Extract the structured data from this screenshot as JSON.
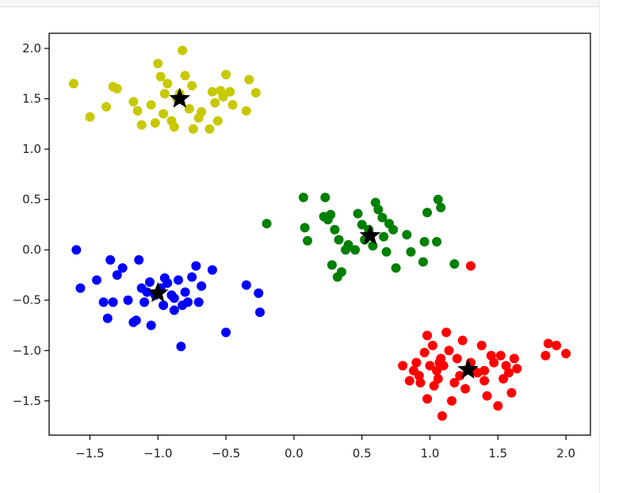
{
  "chart_data": {
    "type": "scatter",
    "title": "",
    "xlabel": "",
    "ylabel": "",
    "xlim": [
      -1.8,
      2.18
    ],
    "ylim": [
      -1.84,
      2.15
    ],
    "xticks": [
      "−1.5",
      "−1.0",
      "−0.5",
      "0.0",
      "0.5",
      "1.0",
      "1.5",
      "2.0"
    ],
    "xtick_values": [
      -1.5,
      -1.0,
      -0.5,
      0.0,
      0.5,
      1.0,
      1.5,
      2.0
    ],
    "yticks": [
      "2.0",
      "1.5",
      "1.0",
      "0.5",
      "0.0",
      "−0.5",
      "−1.0",
      "−1.5"
    ],
    "ytick_values": [
      2.0,
      1.5,
      1.0,
      0.5,
      0.0,
      -0.5,
      -1.0,
      -1.5
    ],
    "grid": false,
    "legend": false,
    "series": [
      {
        "color": "#0000ff",
        "points": [
          [
            -1.6,
            0.0
          ],
          [
            -1.57,
            -0.38
          ],
          [
            -1.45,
            -0.3
          ],
          [
            -1.4,
            -0.52
          ],
          [
            -1.35,
            -0.1
          ],
          [
            -1.33,
            -0.52
          ],
          [
            -1.3,
            -0.25
          ],
          [
            -1.26,
            -0.18
          ],
          [
            -1.22,
            -0.5
          ],
          [
            -1.18,
            -0.72
          ],
          [
            -1.14,
            -0.1
          ],
          [
            -1.12,
            -0.38
          ],
          [
            -1.1,
            -0.52
          ],
          [
            -1.06,
            -0.32
          ],
          [
            -1.05,
            -0.75
          ],
          [
            -1.02,
            -0.45
          ],
          [
            -0.98,
            -0.38
          ],
          [
            -0.96,
            -0.55
          ],
          [
            -0.93,
            -0.33
          ],
          [
            -0.9,
            -0.45
          ],
          [
            -0.88,
            -0.48
          ],
          [
            -0.85,
            -0.3
          ],
          [
            -0.83,
            -0.96
          ],
          [
            -0.82,
            -0.55
          ],
          [
            -0.8,
            -0.42
          ],
          [
            -0.78,
            -0.52
          ],
          [
            -0.75,
            -0.27
          ],
          [
            -0.72,
            -0.16
          ],
          [
            -0.7,
            -0.52
          ],
          [
            -0.68,
            -0.36
          ],
          [
            -0.6,
            -0.2
          ],
          [
            -0.5,
            -0.82
          ],
          [
            -0.35,
            -0.35
          ],
          [
            -0.26,
            -0.43
          ],
          [
            -0.25,
            -0.62
          ],
          [
            -1.37,
            -0.68
          ],
          [
            -1.16,
            -0.7
          ],
          [
            -1.08,
            -0.42
          ],
          [
            -0.95,
            -0.28
          ],
          [
            -0.88,
            -0.6
          ]
        ],
        "centroid": [
          -1.0,
          -0.43
        ]
      },
      {
        "color": "#c8c800",
        "points": [
          [
            -1.62,
            1.65
          ],
          [
            -1.5,
            1.32
          ],
          [
            -1.38,
            1.42
          ],
          [
            -1.33,
            1.62
          ],
          [
            -1.3,
            1.6
          ],
          [
            -1.18,
            1.47
          ],
          [
            -1.15,
            1.38
          ],
          [
            -1.12,
            1.24
          ],
          [
            -1.05,
            1.44
          ],
          [
            -1.02,
            1.26
          ],
          [
            -1.0,
            1.85
          ],
          [
            -0.98,
            1.72
          ],
          [
            -0.96,
            1.35
          ],
          [
            -0.93,
            1.65
          ],
          [
            -0.9,
            1.28
          ],
          [
            -0.86,
            1.5
          ],
          [
            -0.84,
            1.55
          ],
          [
            -0.82,
            1.98
          ],
          [
            -0.8,
            1.73
          ],
          [
            -0.77,
            1.4
          ],
          [
            -0.75,
            1.63
          ],
          [
            -0.7,
            1.31
          ],
          [
            -0.68,
            1.37
          ],
          [
            -0.6,
            1.57
          ],
          [
            -0.58,
            1.46
          ],
          [
            -0.56,
            1.28
          ],
          [
            -0.54,
            1.58
          ],
          [
            -0.52,
            1.52
          ],
          [
            -0.5,
            1.74
          ],
          [
            -0.47,
            1.57
          ],
          [
            -0.45,
            1.44
          ],
          [
            -0.35,
            1.38
          ],
          [
            -0.33,
            1.69
          ],
          [
            -0.28,
            1.56
          ],
          [
            -0.62,
            1.2
          ],
          [
            -0.74,
            1.2
          ],
          [
            -0.88,
            1.22
          ],
          [
            -0.95,
            1.55
          ]
        ],
        "centroid": [
          -0.84,
          1.5
        ]
      },
      {
        "color": "#008000",
        "points": [
          [
            -0.2,
            0.26
          ],
          [
            0.07,
            0.52
          ],
          [
            0.08,
            0.22
          ],
          [
            0.1,
            0.09
          ],
          [
            0.22,
            0.33
          ],
          [
            0.23,
            0.52
          ],
          [
            0.25,
            0.3
          ],
          [
            0.27,
            0.35
          ],
          [
            0.28,
            -0.15
          ],
          [
            0.3,
            0.2
          ],
          [
            0.32,
            -0.27
          ],
          [
            0.33,
            0.1
          ],
          [
            0.35,
            -0.22
          ],
          [
            0.38,
            0.0
          ],
          [
            0.4,
            0.05
          ],
          [
            0.45,
            0.0
          ],
          [
            0.47,
            0.36
          ],
          [
            0.5,
            0.25
          ],
          [
            0.52,
            0.1
          ],
          [
            0.55,
            0.2
          ],
          [
            0.58,
            0.04
          ],
          [
            0.6,
            0.47
          ],
          [
            0.62,
            0.4
          ],
          [
            0.65,
            0.32
          ],
          [
            0.66,
            0.13
          ],
          [
            0.68,
            -0.02
          ],
          [
            0.7,
            0.26
          ],
          [
            0.73,
            0.2
          ],
          [
            0.75,
            -0.18
          ],
          [
            0.83,
            0.15
          ],
          [
            0.86,
            -0.02
          ],
          [
            0.95,
            -0.12
          ],
          [
            0.96,
            0.08
          ],
          [
            0.98,
            0.37
          ],
          [
            1.05,
            0.08
          ],
          [
            1.06,
            0.5
          ],
          [
            1.08,
            0.42
          ],
          [
            1.18,
            -0.14
          ]
        ],
        "centroid": [
          0.56,
          0.14
        ]
      },
      {
        "color": "#ff0000",
        "points": [
          [
            0.8,
            -1.15
          ],
          [
            0.85,
            -1.3
          ],
          [
            0.88,
            -1.2
          ],
          [
            0.9,
            -1.12
          ],
          [
            0.92,
            -1.25
          ],
          [
            0.96,
            -1.02
          ],
          [
            0.98,
            -0.85
          ],
          [
            0.98,
            -1.48
          ],
          [
            1.0,
            -1.15
          ],
          [
            1.02,
            -0.95
          ],
          [
            1.03,
            -1.35
          ],
          [
            1.05,
            -1.2
          ],
          [
            1.06,
            -1.28
          ],
          [
            1.08,
            -1.08
          ],
          [
            1.09,
            -1.65
          ],
          [
            1.1,
            -1.15
          ],
          [
            1.12,
            -0.82
          ],
          [
            1.14,
            -1.0
          ],
          [
            1.16,
            -1.5
          ],
          [
            1.18,
            -1.32
          ],
          [
            1.2,
            -1.08
          ],
          [
            1.22,
            -1.25
          ],
          [
            1.24,
            -0.9
          ],
          [
            1.26,
            -1.38
          ],
          [
            1.3,
            -1.12
          ],
          [
            1.32,
            -1.2
          ],
          [
            1.35,
            -1.22
          ],
          [
            1.38,
            -0.95
          ],
          [
            1.4,
            -1.3
          ],
          [
            1.42,
            -1.45
          ],
          [
            1.45,
            -1.05
          ],
          [
            1.47,
            -1.12
          ],
          [
            1.5,
            -1.55
          ],
          [
            1.52,
            -1.05
          ],
          [
            1.54,
            -1.28
          ],
          [
            1.56,
            -1.15
          ],
          [
            1.58,
            -1.22
          ],
          [
            1.6,
            -1.42
          ],
          [
            1.62,
            -1.08
          ],
          [
            1.64,
            -1.18
          ],
          [
            1.85,
            -1.05
          ],
          [
            1.87,
            -0.93
          ],
          [
            1.93,
            -0.95
          ],
          [
            2.0,
            -1.03
          ],
          [
            1.3,
            -0.16
          ],
          [
            1.07,
            -1.12
          ],
          [
            1.4,
            -1.2
          ],
          [
            0.93,
            -1.32
          ]
        ],
        "centroid": [
          1.28,
          -1.19
        ]
      }
    ]
  }
}
